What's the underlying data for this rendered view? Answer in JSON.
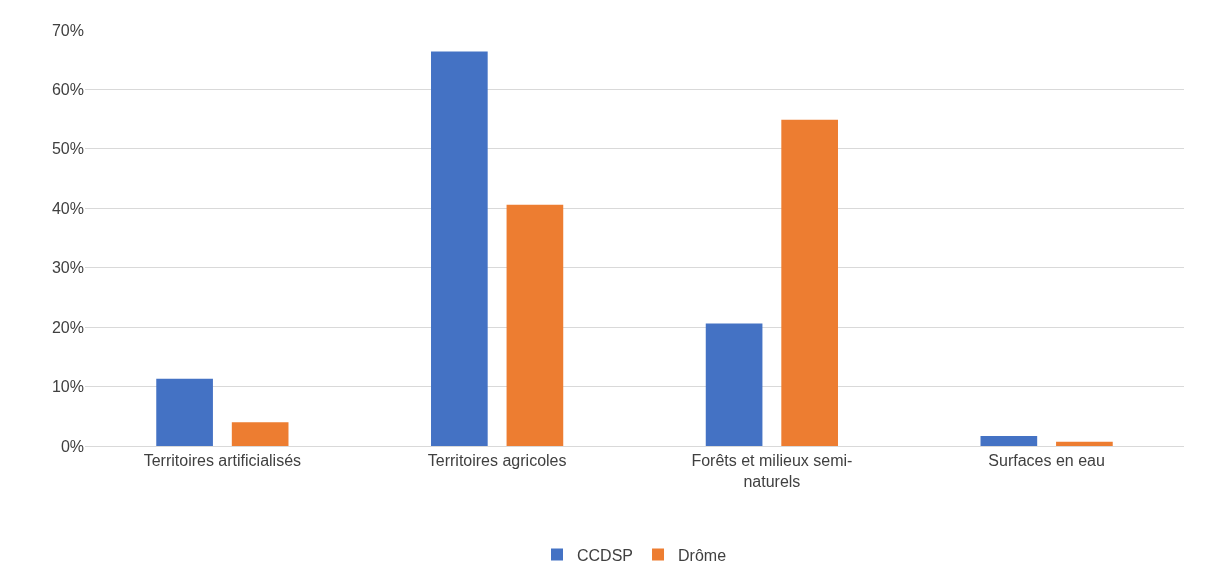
{
  "chart_data": {
    "type": "bar",
    "categories": [
      "Territoires artificialisés",
      "Territoires agricoles",
      "Forêts et milieux semi-naturels",
      "Surfaces en eau"
    ],
    "series": [
      {
        "name": "CCDSP",
        "color": "#4472c4",
        "values": [
          11.3,
          66.4,
          20.6,
          1.7
        ]
      },
      {
        "name": "Drôme",
        "color": "#ed7d31",
        "values": [
          4.0,
          40.6,
          54.9,
          0.7
        ]
      }
    ],
    "ylim": [
      0,
      70
    ],
    "yticks": [
      {
        "value": 0,
        "label": "0%"
      },
      {
        "value": 10,
        "label": "10%"
      },
      {
        "value": 20,
        "label": "20%"
      },
      {
        "value": 30,
        "label": "30%"
      },
      {
        "value": 40,
        "label": "40%"
      },
      {
        "value": 50,
        "label": "50%"
      },
      {
        "value": 60,
        "label": "60%"
      },
      {
        "value": 70,
        "label": "70%"
      }
    ],
    "grid": "y",
    "legend": "bottom"
  }
}
